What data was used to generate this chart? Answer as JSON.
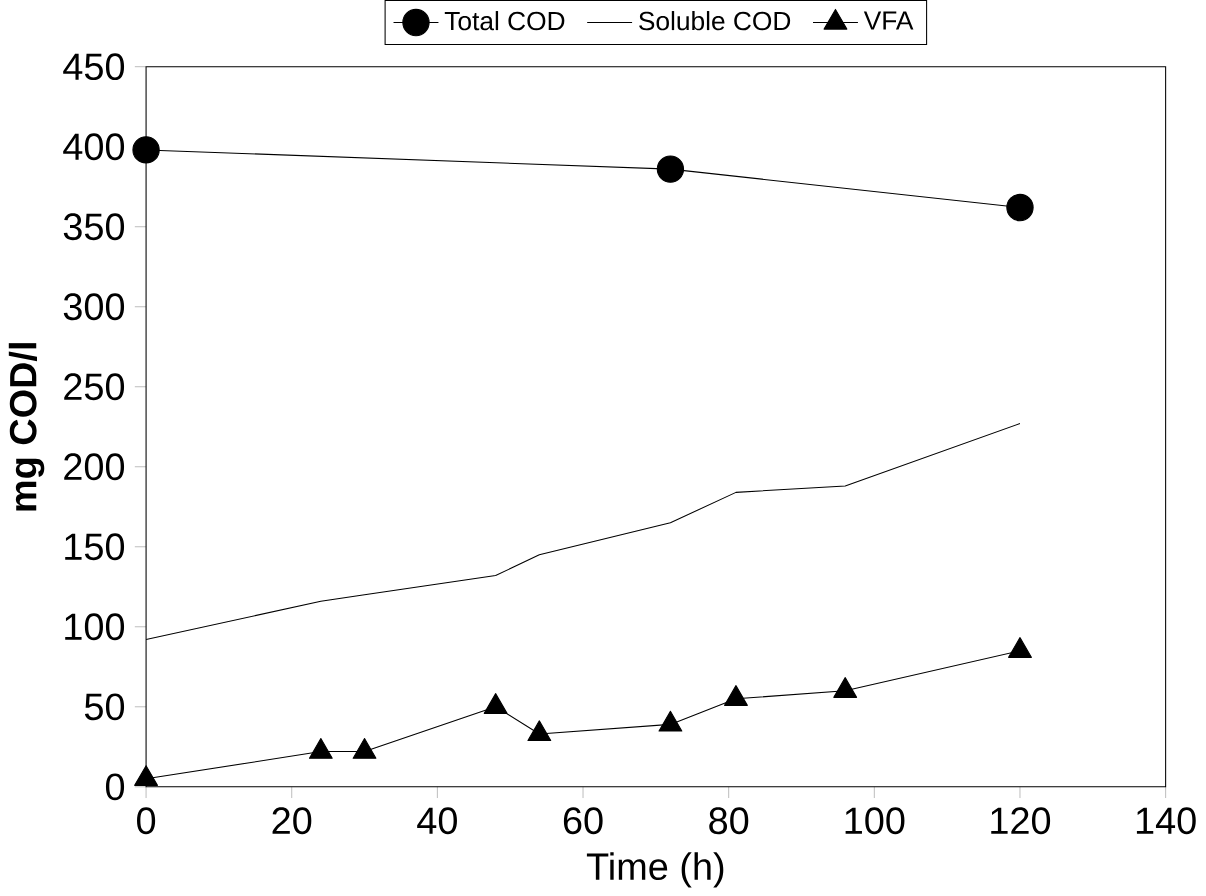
{
  "chart_data": {
    "type": "line",
    "xlabel": "Time (h)",
    "ylabel": "mg COD/l",
    "xlim": [
      0,
      140
    ],
    "xticks": [
      0,
      20,
      40,
      60,
      80,
      100,
      120,
      140
    ],
    "ylim": [
      0,
      450
    ],
    "yticks": [
      0,
      50,
      100,
      150,
      200,
      250,
      300,
      350,
      400,
      450
    ],
    "grid": false,
    "legend": "top",
    "series": [
      {
        "name": "Total COD",
        "color": "#000000",
        "marker": "circle",
        "x": [
          0,
          72,
          120
        ],
        "values": [
          398,
          386,
          362
        ]
      },
      {
        "name": "Soluble COD",
        "color": "#000000",
        "marker": "none",
        "x": [
          0,
          24,
          30,
          48,
          54,
          72,
          81,
          96,
          120
        ],
        "values": [
          92,
          116,
          120,
          132,
          145,
          165,
          184,
          188,
          227
        ]
      },
      {
        "name": "VFA",
        "color": "#000000",
        "marker": "triangle",
        "x": [
          0,
          24,
          30,
          48,
          54,
          72,
          81,
          96,
          120
        ],
        "values": [
          5,
          22,
          22,
          50,
          33,
          39,
          55,
          60,
          85
        ]
      }
    ]
  }
}
